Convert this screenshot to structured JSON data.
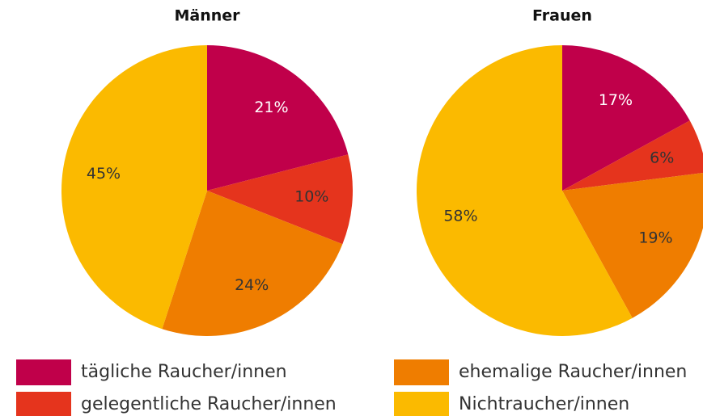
{
  "chart_data": [
    {
      "type": "pie",
      "title": "Männer",
      "values": [
        21,
        10,
        24,
        45
      ],
      "value_labels": [
        "21%",
        "10%",
        "24%",
        "45%"
      ]
    },
    {
      "type": "pie",
      "title": "Frauen",
      "values": [
        17,
        6,
        19,
        58
      ],
      "value_labels": [
        "17%",
        "6%",
        "19%",
        "58%"
      ]
    }
  ],
  "legend": {
    "labels": [
      "tägliche Raucher/innen",
      "gelegentliche Raucher/innen",
      "ehemalige Raucher/innen",
      "Nichtraucher/innen"
    ],
    "colors": [
      "#c0004a",
      "#e5341d",
      "#ef7d00",
      "#fbba00"
    ]
  }
}
